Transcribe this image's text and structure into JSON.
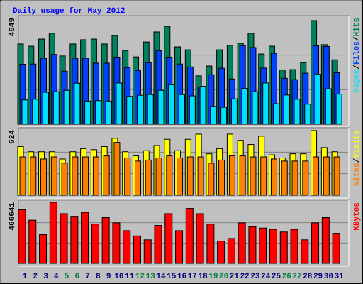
{
  "chart_data": [
    {
      "type": "bar",
      "title": "Daily usage for May 2012",
      "title_color": "#0000ff",
      "ylim": [
        0,
        4649
      ],
      "yticks": [
        4649
      ],
      "legend_separator": "/",
      "series": [
        {
          "name": "Hits",
          "color": "#00805c",
          "values": [
            3600,
            3500,
            3820,
            4080,
            3060,
            3600,
            3790,
            3820,
            3600,
            3980,
            3310,
            3020,
            3690,
            4140,
            4390,
            3470,
            3340,
            2170,
            2610,
            3340,
            3540,
            3630,
            4080,
            3150,
            3500,
            2430,
            2450,
            2760,
            4649,
            3570,
            2890
          ]
        },
        {
          "name": "Files",
          "color": "#0040ff",
          "values": [
            2690,
            2700,
            2960,
            3130,
            2380,
            2960,
            2960,
            2740,
            2740,
            3010,
            2540,
            2410,
            2760,
            3300,
            3010,
            2700,
            2570,
            1660,
            2220,
            2510,
            2030,
            3520,
            3440,
            2520,
            3180,
            2060,
            2000,
            2290,
            3520,
            3490,
            2310
          ]
        },
        {
          "name": "Pages",
          "color": "#00e0ff",
          "values": [
            1090,
            1120,
            1430,
            1460,
            1520,
            1840,
            1040,
            1060,
            1040,
            1850,
            1250,
            1300,
            1330,
            1520,
            1770,
            1330,
            1270,
            1700,
            800,
            760,
            1140,
            1610,
            1460,
            1850,
            920,
            1310,
            1120,
            900,
            2240,
            1590,
            1350
          ]
        }
      ]
    },
    {
      "type": "bar",
      "ylim": [
        0,
        624
      ],
      "yticks": [
        624
      ],
      "legend_separator": "/",
      "series": [
        {
          "name": "Visits",
          "color": "#ffff00",
          "values": [
            470,
            420,
            420,
            420,
            350,
            420,
            450,
            440,
            470,
            550,
            420,
            380,
            430,
            480,
            540,
            430,
            540,
            590,
            400,
            450,
            590,
            530,
            490,
            570,
            390,
            360,
            400,
            400,
            624,
            460,
            420
          ]
        },
        {
          "name": "Sites",
          "color": "#ff8000",
          "values": [
            370,
            370,
            350,
            370,
            310,
            370,
            370,
            370,
            380,
            510,
            360,
            330,
            340,
            360,
            380,
            360,
            370,
            370,
            310,
            340,
            380,
            380,
            370,
            370,
            350,
            330,
            330,
            330,
            370,
            370,
            370
          ]
        }
      ]
    },
    {
      "type": "bar",
      "ylim": [
        0,
        466641
      ],
      "yticks": [
        466641
      ],
      "categories": [
        "1",
        "2",
        "3",
        "4",
        "5",
        "6",
        "7",
        "8",
        "9",
        "10",
        "11",
        "12",
        "13",
        "14",
        "15",
        "16",
        "17",
        "18",
        "19",
        "20",
        "21",
        "22",
        "23",
        "24",
        "25",
        "26",
        "27",
        "28",
        "29",
        "30",
        "31"
      ],
      "category_colors": [
        "#000080",
        "#000080",
        "#000080",
        "#000080",
        "#008040",
        "#008040",
        "#000080",
        "#000080",
        "#000080",
        "#000080",
        "#000080",
        "#008040",
        "#008040",
        "#000080",
        "#000080",
        "#000080",
        "#000080",
        "#000080",
        "#008040",
        "#008040",
        "#000080",
        "#000080",
        "#000080",
        "#000080",
        "#000080",
        "#008040",
        "#008040",
        "#000080",
        "#000080",
        "#000080",
        "#000080"
      ],
      "series": [
        {
          "name": "KBytes",
          "color": "#ff0000",
          "values": [
            410000,
            330000,
            220000,
            466641,
            380000,
            360000,
            390000,
            300000,
            350000,
            310000,
            250000,
            210000,
            180000,
            290000,
            380000,
            250000,
            420000,
            380000,
            300000,
            170000,
            190000,
            310000,
            280000,
            270000,
            260000,
            240000,
            260000,
            180000,
            310000,
            350000,
            230000
          ]
        }
      ]
    }
  ]
}
